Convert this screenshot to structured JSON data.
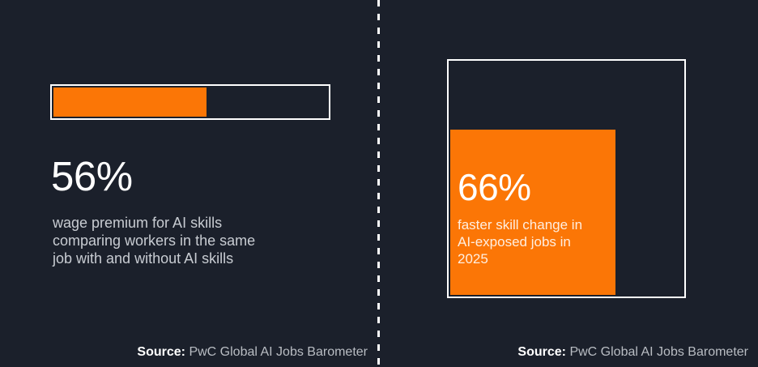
{
  "theme": {
    "background": "#1b202b",
    "accent_orange": "#fb7606",
    "outline_white": "#ffffff",
    "body_text": "#c8ccd2",
    "source_text": "#b9bdc3"
  },
  "left_panel": {
    "stat": "56%",
    "description_lines": [
      "wage premium for AI skills",
      "comparing workers in the same",
      "job with and without AI skills"
    ],
    "source_label": "Source:",
    "source_name": "PwC Global AI Jobs Barometer"
  },
  "right_panel": {
    "stat": "66%",
    "description_lines": [
      "faster skill change in",
      "AI-exposed jobs in",
      "2025"
    ],
    "source_label": "Source:",
    "source_name": "PwC Global AI Jobs Barometer"
  },
  "chart_data": [
    {
      "type": "bar",
      "orientation": "horizontal",
      "title": "",
      "categories": [
        "wage premium for AI skills comparing workers in the same job with and without AI skills"
      ],
      "values": [
        56
      ],
      "value_labels": [
        "56%"
      ],
      "xlim": [
        0,
        100
      ],
      "grid": false,
      "legend": false,
      "bar_color": "#fb7606",
      "track_outline": "#ffffff",
      "source": "PwC Global AI Jobs Barometer"
    },
    {
      "type": "area",
      "subtype": "proportional-square",
      "title": "",
      "categories": [
        "faster skill change in AI-exposed jobs in 2025"
      ],
      "values": [
        66
      ],
      "value_labels": [
        "66%"
      ],
      "fill_side_fraction": 0.7,
      "grid": false,
      "legend": false,
      "fill_color": "#fb7606",
      "outline_color": "#ffffff",
      "source": "PwC Global AI Jobs Barometer"
    }
  ]
}
